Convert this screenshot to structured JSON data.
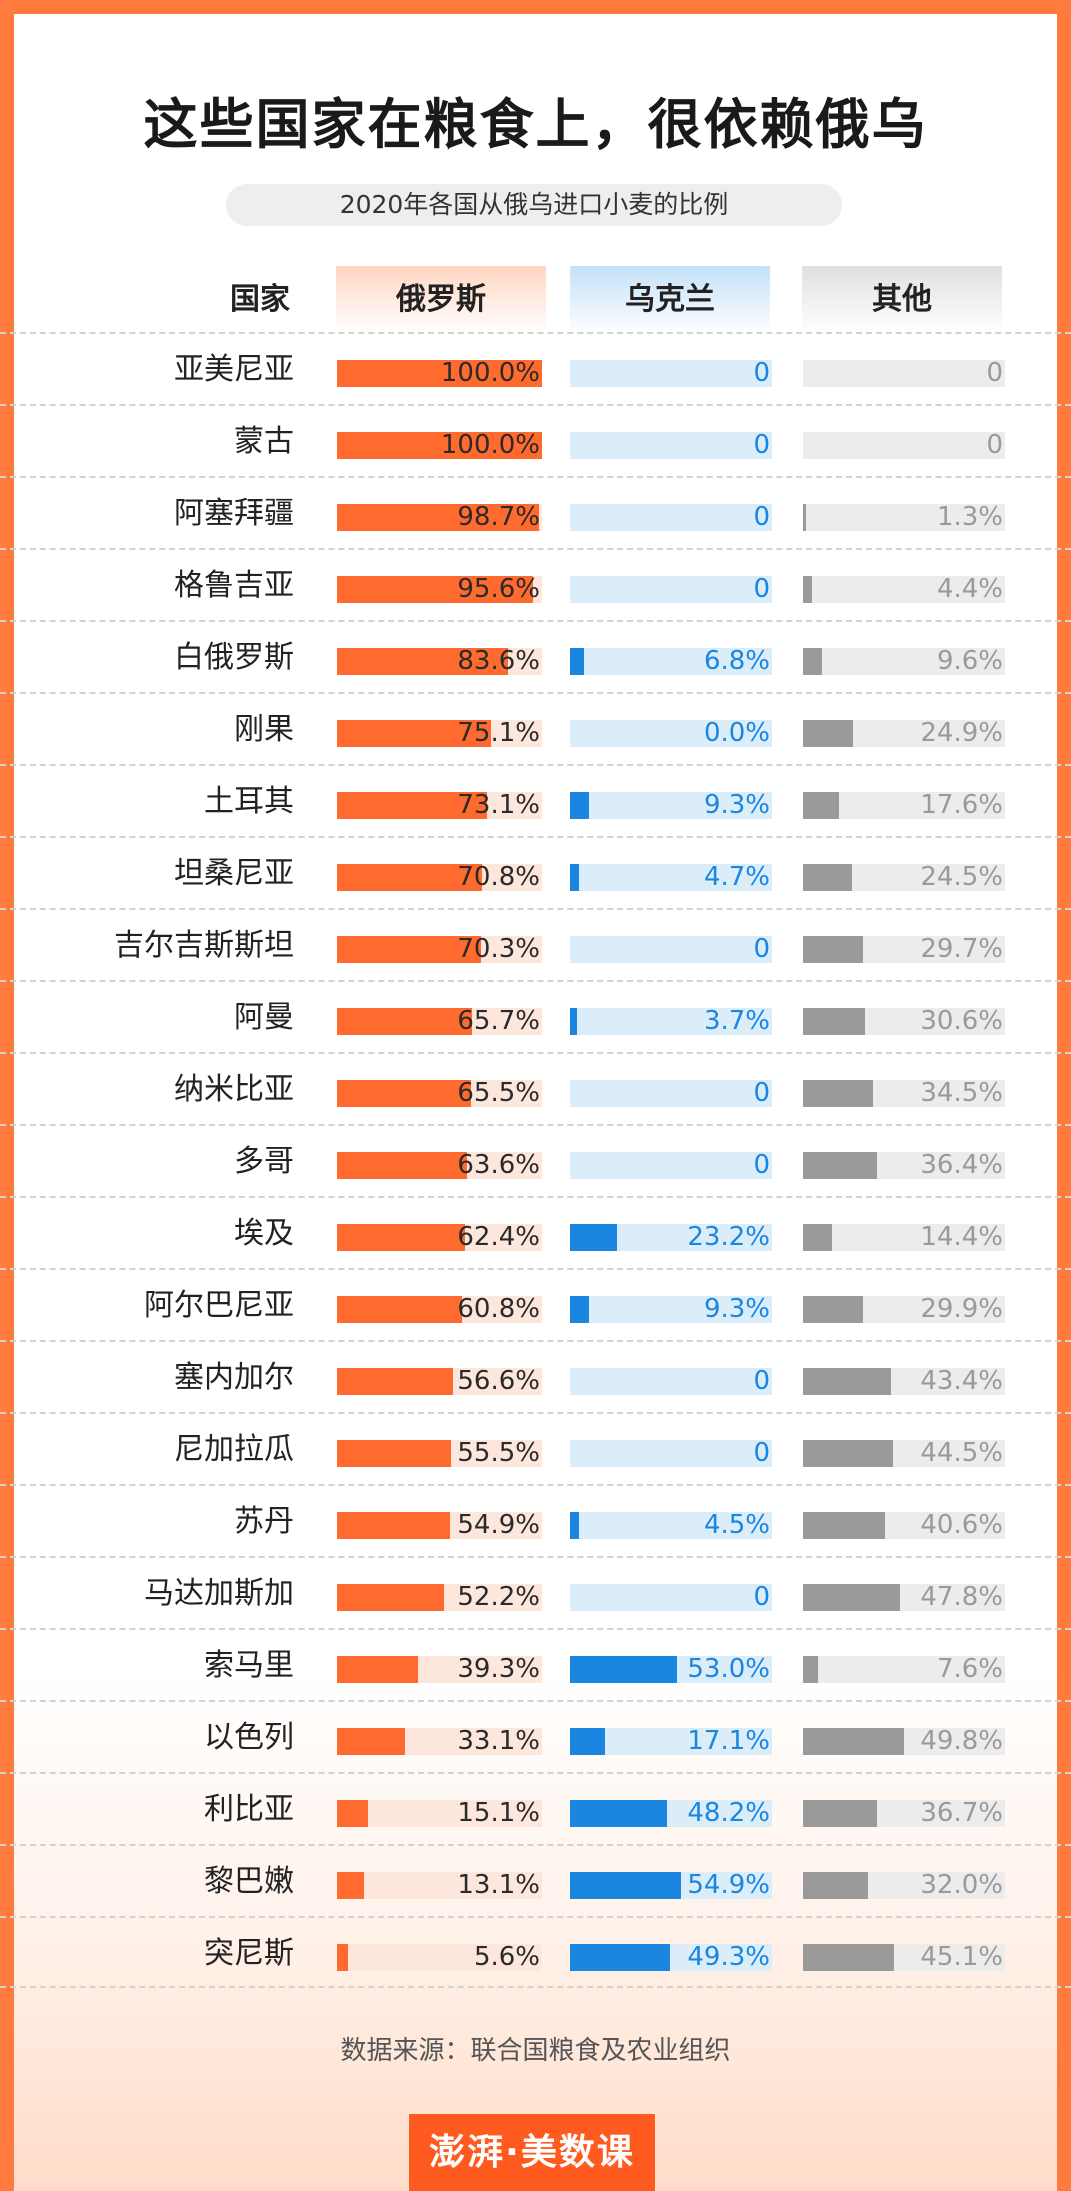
{
  "title": "这些国家在粮食上，很依赖俄乌",
  "subtitle": "2020年各国从俄乌进口小麦的比例",
  "source": "数据来源：联合国粮食及农业组织",
  "logo": "澎湃·美数课",
  "colors": {
    "russia": "#ff6a2e",
    "ukraine": "#1a86e0",
    "other": "#9a9a9a"
  },
  "chart_data": {
    "type": "bar",
    "title": "这些国家在粮食上，很依赖俄乌",
    "subtitle": "2020年各国从俄乌进口小麦的比例",
    "column_headers": {
      "country": "国家",
      "russia": "俄罗斯",
      "ukraine": "乌克兰",
      "other": "其他"
    },
    "unit": "%",
    "xlim": [
      0,
      100
    ],
    "rows": [
      {
        "country": "亚美尼亚",
        "russia": 100.0,
        "russia_label": "100.0%",
        "ukraine": 0,
        "ukraine_label": "0",
        "other": 0,
        "other_label": "0"
      },
      {
        "country": "蒙古",
        "russia": 100.0,
        "russia_label": "100.0%",
        "ukraine": 0,
        "ukraine_label": "0",
        "other": 0,
        "other_label": "0"
      },
      {
        "country": "阿塞拜疆",
        "russia": 98.7,
        "russia_label": "98.7%",
        "ukraine": 0,
        "ukraine_label": "0",
        "other": 1.3,
        "other_label": "1.3%"
      },
      {
        "country": "格鲁吉亚",
        "russia": 95.6,
        "russia_label": "95.6%",
        "ukraine": 0,
        "ukraine_label": "0",
        "other": 4.4,
        "other_label": "4.4%"
      },
      {
        "country": "白俄罗斯",
        "russia": 83.6,
        "russia_label": "83.6%",
        "ukraine": 6.8,
        "ukraine_label": "6.8%",
        "other": 9.6,
        "other_label": "9.6%"
      },
      {
        "country": "刚果",
        "russia": 75.1,
        "russia_label": "75.1%",
        "ukraine": 0.0,
        "ukraine_label": "0.0%",
        "other": 24.9,
        "other_label": "24.9%"
      },
      {
        "country": "土耳其",
        "russia": 73.1,
        "russia_label": "73.1%",
        "ukraine": 9.3,
        "ukraine_label": "9.3%",
        "other": 17.6,
        "other_label": "17.6%"
      },
      {
        "country": "坦桑尼亚",
        "russia": 70.8,
        "russia_label": "70.8%",
        "ukraine": 4.7,
        "ukraine_label": "4.7%",
        "other": 24.5,
        "other_label": "24.5%"
      },
      {
        "country": "吉尔吉斯斯坦",
        "russia": 70.3,
        "russia_label": "70.3%",
        "ukraine": 0,
        "ukraine_label": "0",
        "other": 29.7,
        "other_label": "29.7%"
      },
      {
        "country": "阿曼",
        "russia": 65.7,
        "russia_label": "65.7%",
        "ukraine": 3.7,
        "ukraine_label": "3.7%",
        "other": 30.6,
        "other_label": "30.6%"
      },
      {
        "country": "纳米比亚",
        "russia": 65.5,
        "russia_label": "65.5%",
        "ukraine": 0,
        "ukraine_label": "0",
        "other": 34.5,
        "other_label": "34.5%"
      },
      {
        "country": "多哥",
        "russia": 63.6,
        "russia_label": "63.6%",
        "ukraine": 0,
        "ukraine_label": "0",
        "other": 36.4,
        "other_label": "36.4%"
      },
      {
        "country": "埃及",
        "russia": 62.4,
        "russia_label": "62.4%",
        "ukraine": 23.2,
        "ukraine_label": "23.2%",
        "other": 14.4,
        "other_label": "14.4%"
      },
      {
        "country": "阿尔巴尼亚",
        "russia": 60.8,
        "russia_label": "60.8%",
        "ukraine": 9.3,
        "ukraine_label": "9.3%",
        "other": 29.9,
        "other_label": "29.9%"
      },
      {
        "country": "塞内加尔",
        "russia": 56.6,
        "russia_label": "56.6%",
        "ukraine": 0,
        "ukraine_label": "0",
        "other": 43.4,
        "other_label": "43.4%"
      },
      {
        "country": "尼加拉瓜",
        "russia": 55.5,
        "russia_label": "55.5%",
        "ukraine": 0,
        "ukraine_label": "0",
        "other": 44.5,
        "other_label": "44.5%"
      },
      {
        "country": "苏丹",
        "russia": 54.9,
        "russia_label": "54.9%",
        "ukraine": 4.5,
        "ukraine_label": "4.5%",
        "other": 40.6,
        "other_label": "40.6%"
      },
      {
        "country": "马达加斯加",
        "russia": 52.2,
        "russia_label": "52.2%",
        "ukraine": 0,
        "ukraine_label": "0",
        "other": 47.8,
        "other_label": "47.8%"
      },
      {
        "country": "索马里",
        "russia": 39.3,
        "russia_label": "39.3%",
        "ukraine": 53.0,
        "ukraine_label": "53.0%",
        "other": 7.6,
        "other_label": "7.6%"
      },
      {
        "country": "以色列",
        "russia": 33.1,
        "russia_label": "33.1%",
        "ukraine": 17.1,
        "ukraine_label": "17.1%",
        "other": 49.8,
        "other_label": "49.8%"
      },
      {
        "country": "利比亚",
        "russia": 15.1,
        "russia_label": "15.1%",
        "ukraine": 48.2,
        "ukraine_label": "48.2%",
        "other": 36.7,
        "other_label": "36.7%"
      },
      {
        "country": "黎巴嫩",
        "russia": 13.1,
        "russia_label": "13.1%",
        "ukraine": 54.9,
        "ukraine_label": "54.9%",
        "other": 32.0,
        "other_label": "32.0%"
      },
      {
        "country": "突尼斯",
        "russia": 5.6,
        "russia_label": "5.6%",
        "ukraine": 49.3,
        "ukraine_label": "49.3%",
        "other": 45.1,
        "other_label": "45.1%"
      }
    ]
  }
}
